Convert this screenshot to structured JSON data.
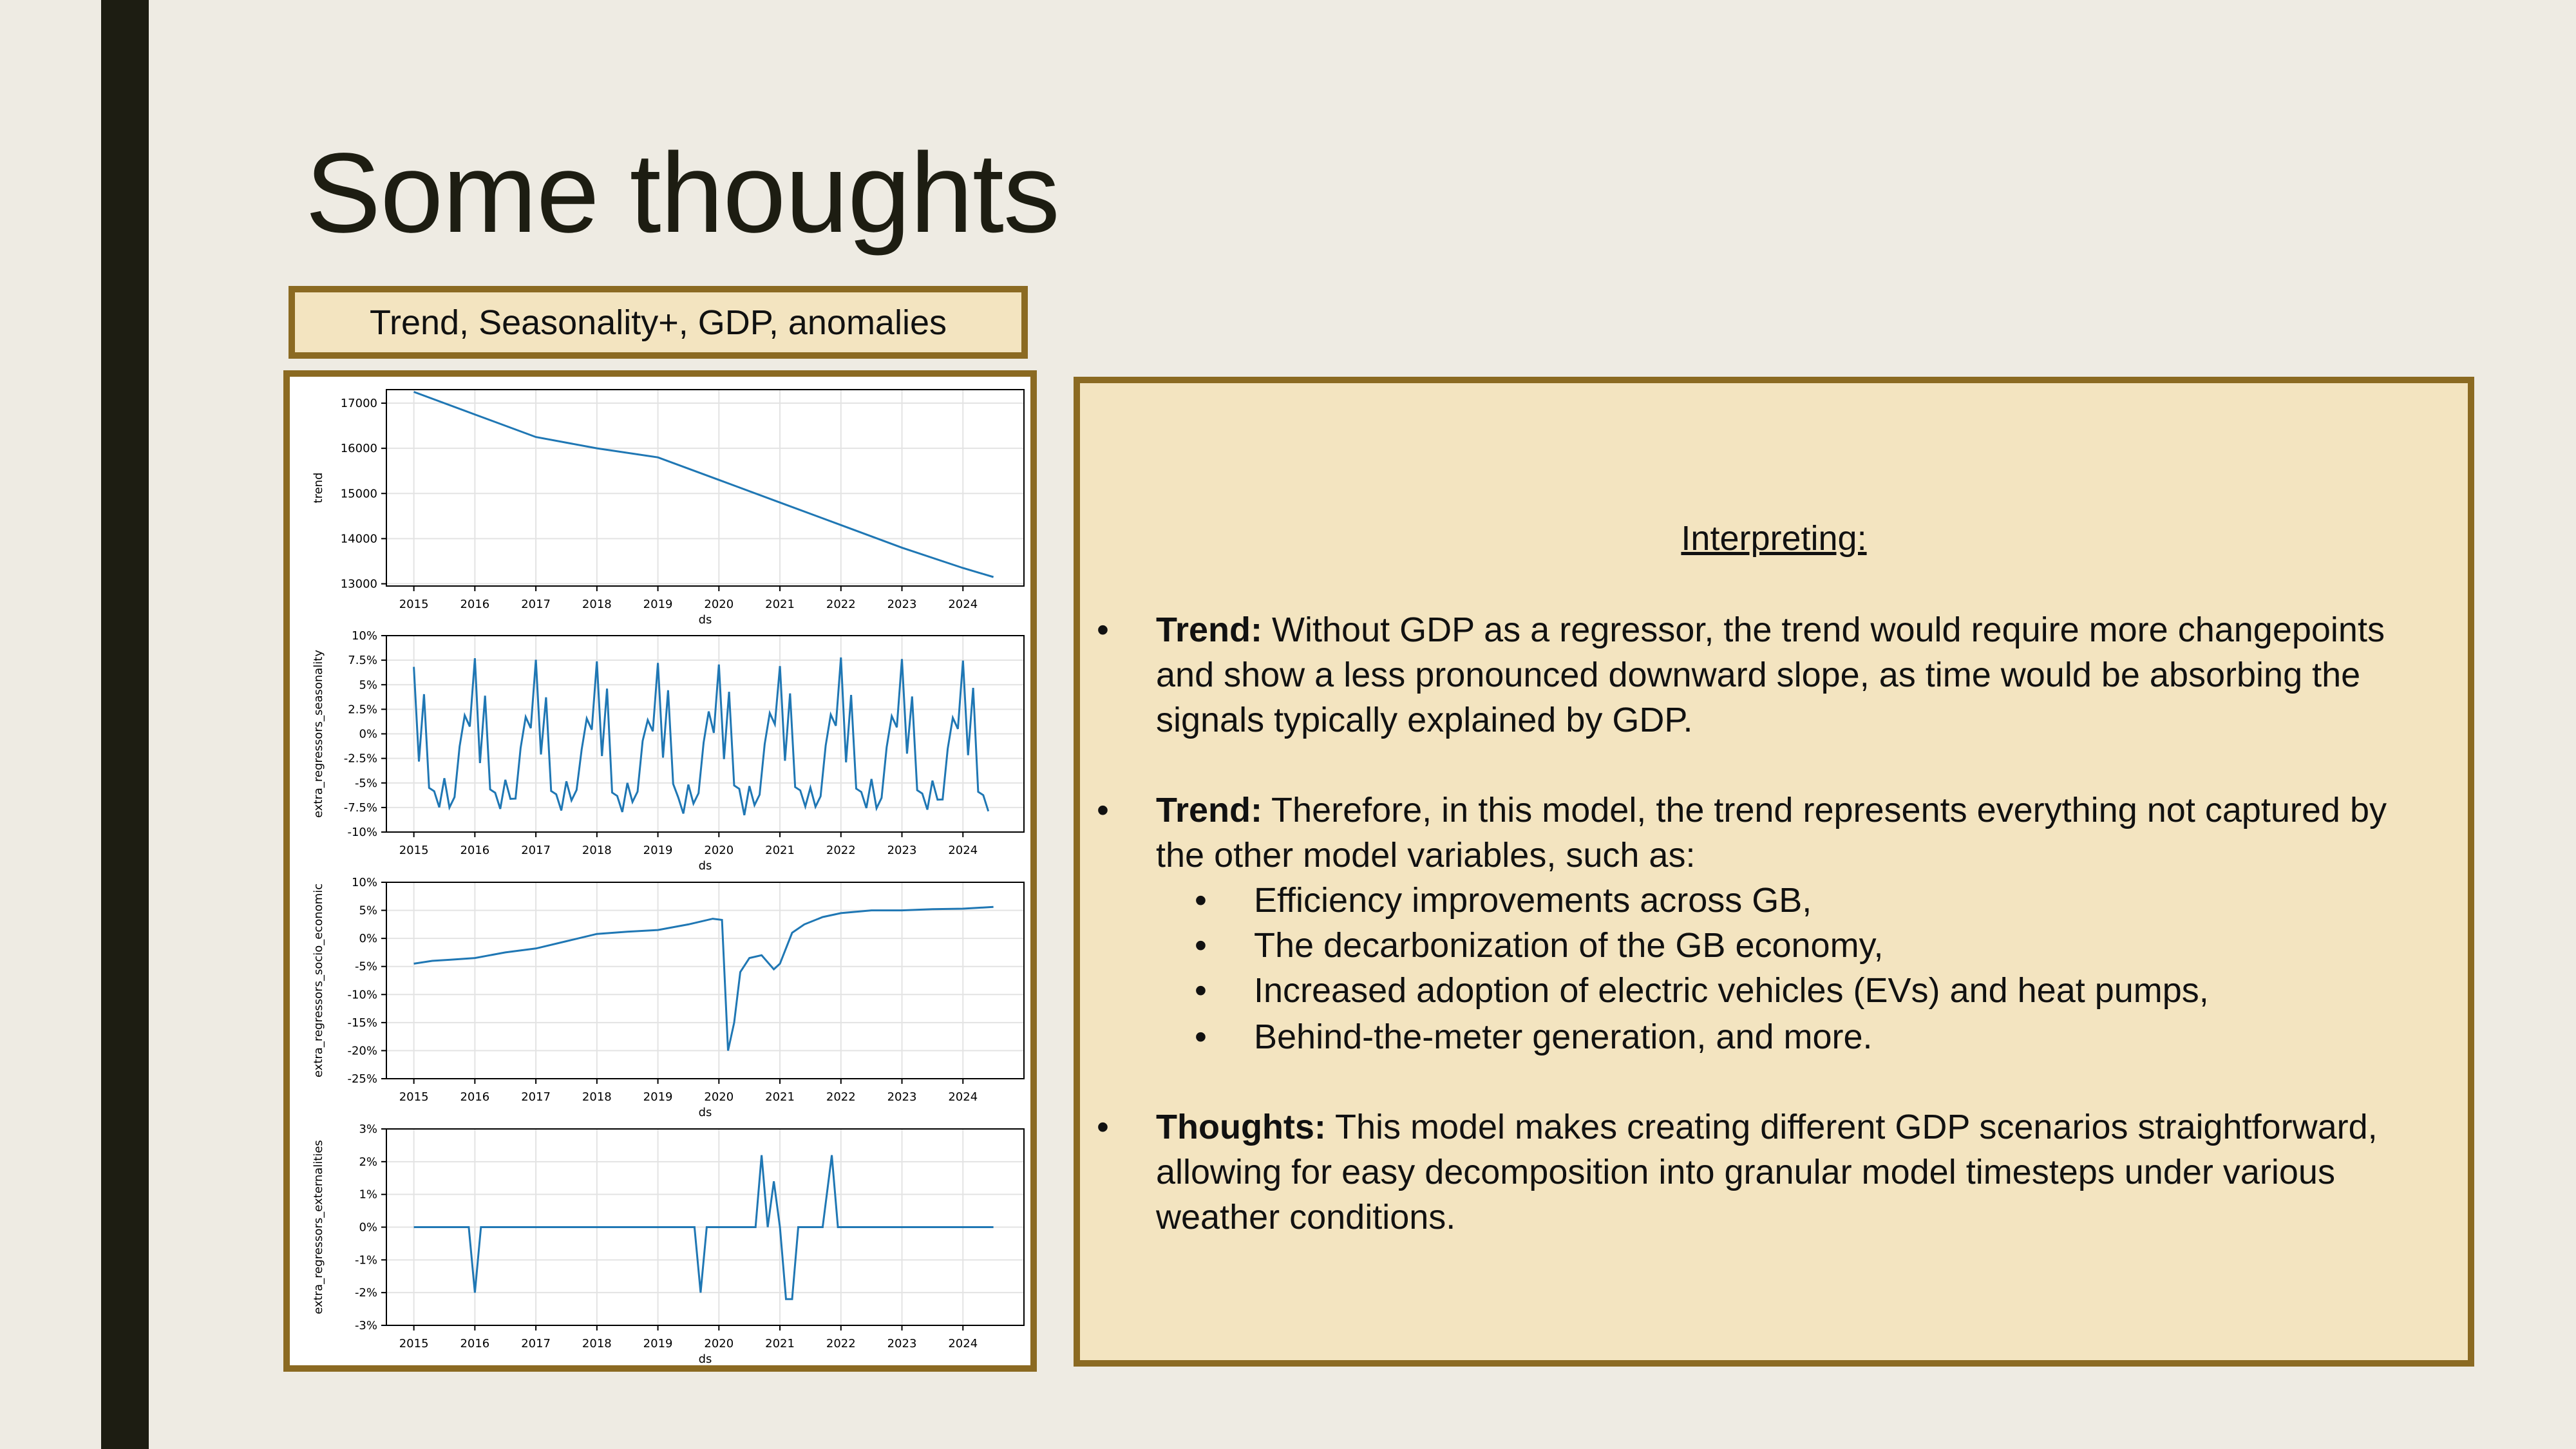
{
  "slide": {
    "title": "Some thoughts",
    "caption": "Trend, Seasonality+, GDP, anomalies",
    "panel": {
      "heading": "Interpreting:",
      "bullet1_label": "Trend:",
      "bullet1_text": "Without GDP as a regressor, the trend would require more changepoints and show a less pronounced downward slope, as time would be absorbing the signals typically explained by GDP.",
      "bullet2_label": "Trend:",
      "bullet2_text": "Therefore, in this model, the trend represents everything not captured by the other model variables, such as:",
      "sub_items": [
        "Efficiency improvements across GB,",
        "The decarbonization of the GB economy,",
        "Increased adoption of electric vehicles (EVs) and heat pumps,",
        "Behind-the-meter generation, and more."
      ],
      "bullet3_label": "Thoughts:",
      "bullet3_text": "This model makes creating different GDP scenarios straightforward, allowing for easy decomposition into granular model timesteps under various weather conditions."
    },
    "colors": {
      "background": "#EEEBE3",
      "left_bar": "#1D1D12",
      "panel_fill": "#F3E4C0",
      "panel_border": "#8B6A22",
      "line": "#1F77B4"
    }
  },
  "chart_data": [
    {
      "type": "line",
      "xlabel": "ds",
      "ylabel": "trend",
      "xticks": [
        "2015",
        "2016",
        "2017",
        "2018",
        "2019",
        "2020",
        "2021",
        "2022",
        "2023",
        "2024"
      ],
      "yticks": [
        "13000",
        "14000",
        "15000",
        "16000",
        "17000"
      ],
      "ylim": [
        12950,
        17300
      ],
      "xlim": [
        2014.55,
        2025.0
      ],
      "grid": true,
      "series": [
        {
          "x": [
            2015.0,
            2016.0,
            2017.0,
            2018.0,
            2019.0,
            2019.5,
            2020.0,
            2021.0,
            2022.0,
            2023.0,
            2024.0,
            2024.5
          ],
          "y": [
            17250,
            16750,
            16250,
            16000,
            15800,
            15550,
            15300,
            14800,
            14300,
            13800,
            13350,
            13150
          ]
        }
      ]
    },
    {
      "type": "line",
      "xlabel": "ds",
      "ylabel": "extra_regressors_seasonality",
      "xticks": [
        "2015",
        "2016",
        "2017",
        "2018",
        "2019",
        "2020",
        "2021",
        "2022",
        "2023",
        "2024"
      ],
      "yticks": [
        "-10%",
        "-7.5%",
        "-5%",
        "-2.5%",
        "0%",
        "2.5%",
        "5%",
        "7.5%",
        "10%"
      ],
      "ylim": [
        -10,
        10
      ],
      "xlim": [
        2014.55,
        2025.0
      ],
      "grid": true,
      "pattern": [
        7.3,
        -2.5,
        4.2,
        -5.5,
        -6.0,
        -7.8,
        -5.0,
        -7.1,
        -6.2,
        -1.2,
        1.8,
        0.5
      ],
      "start": 2015.0,
      "months": 114
    },
    {
      "type": "line",
      "xlabel": "ds",
      "ylabel": "extra_regressors_socio_economic",
      "xticks": [
        "2015",
        "2016",
        "2017",
        "2018",
        "2019",
        "2020",
        "2021",
        "2022",
        "2023",
        "2024"
      ],
      "yticks": [
        "-25%",
        "-20%",
        "-15%",
        "-10%",
        "-5%",
        "0%",
        "5%",
        "10%"
      ],
      "ylim": [
        -25,
        10
      ],
      "xlim": [
        2014.55,
        2025.0
      ],
      "grid": true,
      "series": [
        {
          "x": [
            2015.0,
            2015.3,
            2015.6,
            2016.0,
            2016.5,
            2017.0,
            2017.5,
            2018.0,
            2018.5,
            2019.0,
            2019.5,
            2019.9,
            2020.05,
            2020.15,
            2020.25,
            2020.35,
            2020.5,
            2020.7,
            2020.9,
            2021.0,
            2021.2,
            2021.4,
            2021.7,
            2022.0,
            2022.5,
            2023.0,
            2023.5,
            2024.0,
            2024.5
          ],
          "y": [
            -4.5,
            -4.0,
            -3.8,
            -3.5,
            -2.5,
            -1.8,
            -0.5,
            0.8,
            1.2,
            1.5,
            2.5,
            3.5,
            3.3,
            -20.0,
            -15.0,
            -6.0,
            -3.5,
            -3.0,
            -5.5,
            -4.5,
            1.0,
            2.5,
            3.8,
            4.5,
            5.0,
            5.0,
            5.2,
            5.3,
            5.6
          ]
        }
      ]
    },
    {
      "type": "line",
      "xlabel": "ds",
      "ylabel": "extra_regressors_externalities",
      "xticks": [
        "2015",
        "2016",
        "2017",
        "2018",
        "2019",
        "2020",
        "2021",
        "2022",
        "2023",
        "2024"
      ],
      "yticks": [
        "-3%",
        "-2%",
        "-1%",
        "0%",
        "1%",
        "2%",
        "3%"
      ],
      "ylim": [
        -3,
        3
      ],
      "xlim": [
        2014.55,
        2025.0
      ],
      "grid": true,
      "series": [
        {
          "x": [
            2015.0,
            2015.9,
            2016.0,
            2016.1,
            2019.6,
            2019.7,
            2019.8,
            2020.6,
            2020.7,
            2020.8,
            2020.9,
            2021.0,
            2021.1,
            2021.2,
            2021.3,
            2021.7,
            2021.85,
            2021.95,
            2022.0,
            2024.5
          ],
          "y": [
            0,
            0,
            -2.0,
            0,
            0,
            -2.0,
            0,
            0,
            2.2,
            0.0,
            1.4,
            0,
            -2.2,
            -2.2,
            0,
            0,
            2.2,
            0,
            0,
            0
          ]
        }
      ]
    }
  ]
}
